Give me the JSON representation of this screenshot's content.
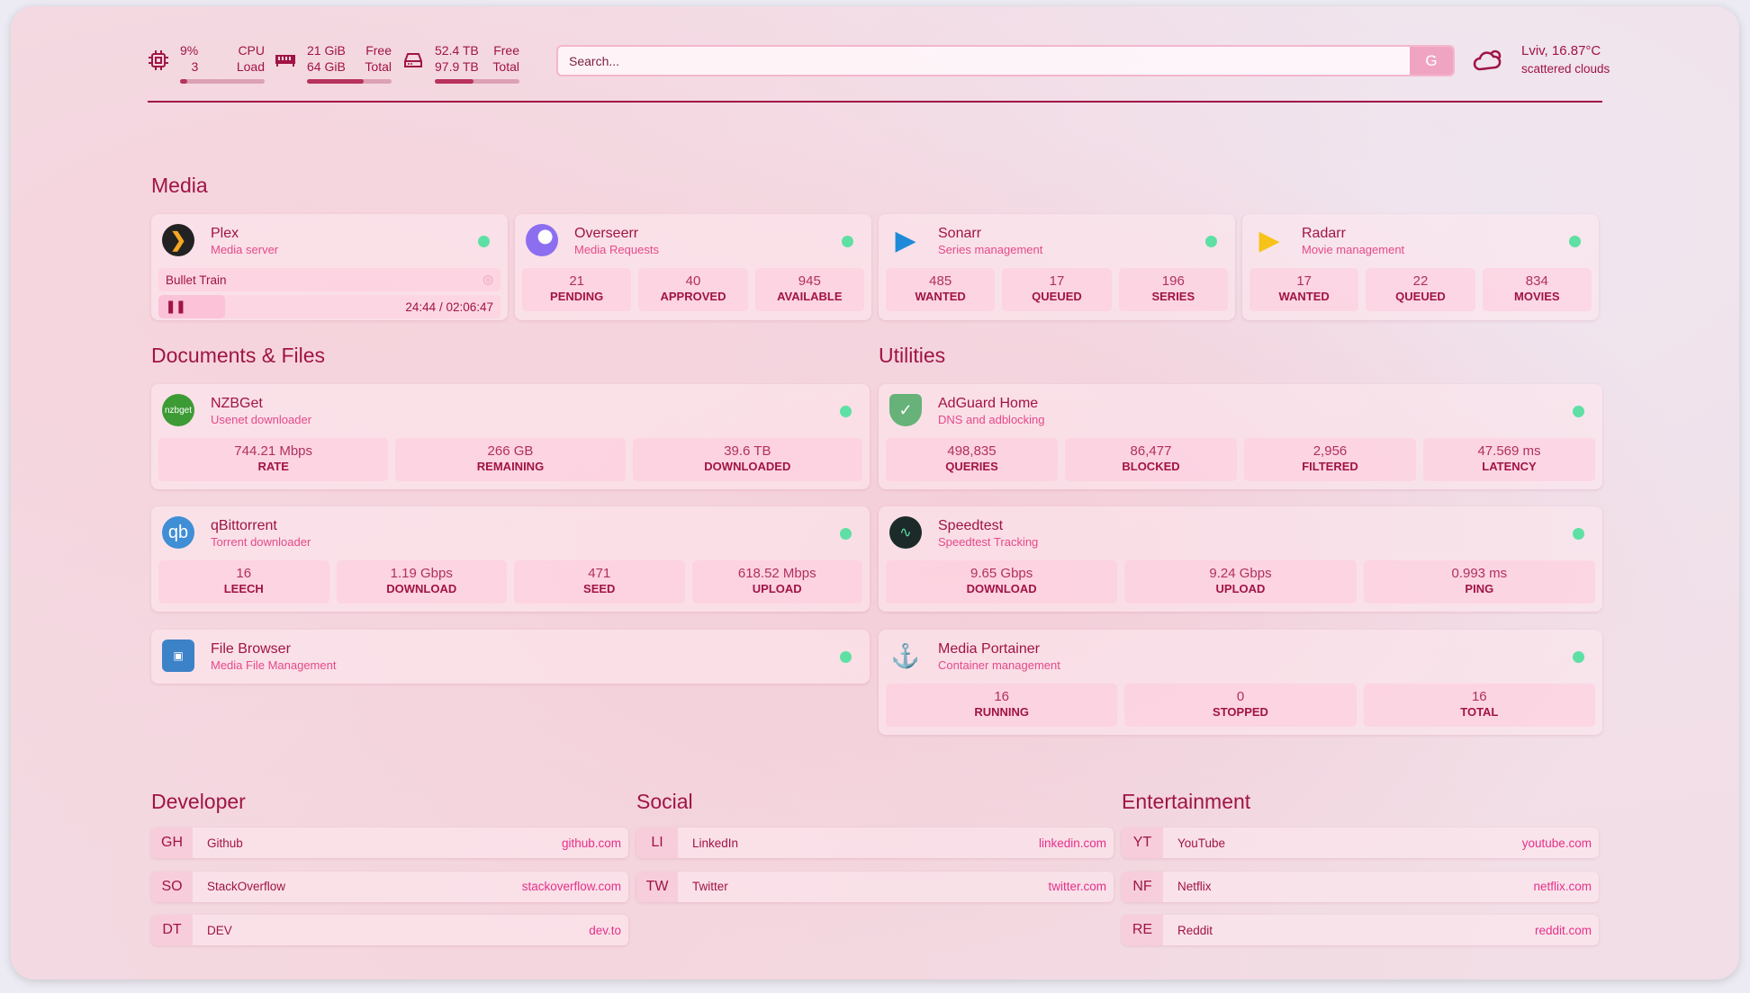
{
  "header": {
    "cpu": {
      "icon": "cpu-icon",
      "value": "9%",
      "sub": "3",
      "label1": "CPU",
      "label2": "Load",
      "fill": 9
    },
    "memory": {
      "icon": "memory-icon",
      "value": "21 GiB",
      "sub": "64 GiB",
      "label1": "Free",
      "label2": "Total",
      "fill": 67
    },
    "disk": {
      "icon": "disk-icon",
      "value": "52.4 TB",
      "sub": "97.9 TB",
      "label1": "Free",
      "label2": "Total",
      "fill": 46
    },
    "search": {
      "placeholder": "Search...",
      "button": "G"
    },
    "weather": {
      "icon": "cloud-sun-icon",
      "location": "Lviv, 16.87°C",
      "condition": "scattered clouds"
    }
  },
  "colors": {
    "accent": "#a01445",
    "pink": "#e5498a",
    "status_online": "#5ee0a4"
  },
  "sections": {
    "media": "Media",
    "documents": "Documents & Files",
    "utilities": "Utilities",
    "developer": "Developer",
    "social": "Social",
    "entertainment": "Entertainment"
  },
  "media": [
    {
      "name": "Plex",
      "sub": "Media server",
      "icon": "plex-icon",
      "now_playing": {
        "title": "Bullet Train",
        "time": "24:44 / 02:06:47",
        "progress": 19.5
      }
    },
    {
      "name": "Overseerr",
      "sub": "Media Requests",
      "icon": "overseerr-icon",
      "stats": [
        {
          "v": "21",
          "l": "PENDING"
        },
        {
          "v": "40",
          "l": "APPROVED"
        },
        {
          "v": "945",
          "l": "AVAILABLE"
        }
      ]
    },
    {
      "name": "Sonarr",
      "sub": "Series management",
      "icon": "sonarr-icon",
      "stats": [
        {
          "v": "485",
          "l": "WANTED"
        },
        {
          "v": "17",
          "l": "QUEUED"
        },
        {
          "v": "196",
          "l": "SERIES"
        }
      ]
    },
    {
      "name": "Radarr",
      "sub": "Movie management",
      "icon": "radarr-icon",
      "stats": [
        {
          "v": "17",
          "l": "WANTED"
        },
        {
          "v": "22",
          "l": "QUEUED"
        },
        {
          "v": "834",
          "l": "MOVIES"
        }
      ]
    }
  ],
  "documents": [
    {
      "name": "NZBGet",
      "sub": "Usenet downloader",
      "icon": "nzbget-icon",
      "icon_text": "nzbget",
      "stats": [
        {
          "v": "744.21 Mbps",
          "l": "RATE"
        },
        {
          "v": "266 GB",
          "l": "REMAINING"
        },
        {
          "v": "39.6 TB",
          "l": "DOWNLOADED"
        }
      ]
    },
    {
      "name": "qBittorrent",
      "sub": "Torrent downloader",
      "icon": "qbittorrent-icon",
      "icon_text": "qb",
      "stats": [
        {
          "v": "16",
          "l": "LEECH"
        },
        {
          "v": "1.19 Gbps",
          "l": "DOWNLOAD"
        },
        {
          "v": "471",
          "l": "SEED"
        },
        {
          "v": "618.52 Mbps",
          "l": "UPLOAD"
        }
      ]
    },
    {
      "name": "File Browser",
      "sub": "Media File Management",
      "icon": "file-browser-icon",
      "stats": []
    }
  ],
  "utilities": [
    {
      "name": "AdGuard Home",
      "sub": "DNS and adblocking",
      "icon": "adguard-icon",
      "stats": [
        {
          "v": "498,835",
          "l": "QUERIES"
        },
        {
          "v": "86,477",
          "l": "BLOCKED"
        },
        {
          "v": "2,956",
          "l": "FILTERED"
        },
        {
          "v": "47.569 ms",
          "l": "LATENCY"
        }
      ]
    },
    {
      "name": "Speedtest",
      "sub": "Speedtest Tracking",
      "icon": "speedtest-icon",
      "stats": [
        {
          "v": "9.65 Gbps",
          "l": "DOWNLOAD"
        },
        {
          "v": "9.24 Gbps",
          "l": "UPLOAD"
        },
        {
          "v": "0.993 ms",
          "l": "PING"
        }
      ]
    },
    {
      "name": "Media Portainer",
      "sub": "Container management",
      "icon": "portainer-icon",
      "stats": [
        {
          "v": "16",
          "l": "RUNNING"
        },
        {
          "v": "0",
          "l": "STOPPED"
        },
        {
          "v": "16",
          "l": "TOTAL"
        }
      ]
    }
  ],
  "bookmarks": {
    "developer": [
      {
        "abbr": "GH",
        "name": "Github",
        "href": "github.com"
      },
      {
        "abbr": "SO",
        "name": "StackOverflow",
        "href": "stackoverflow.com"
      },
      {
        "abbr": "DT",
        "name": "DEV",
        "href": "dev.to"
      }
    ],
    "social": [
      {
        "abbr": "LI",
        "name": "LinkedIn",
        "href": "linkedin.com"
      },
      {
        "abbr": "TW",
        "name": "Twitter",
        "href": "twitter.com"
      }
    ],
    "entertainment": [
      {
        "abbr": "YT",
        "name": "YouTube",
        "href": "youtube.com"
      },
      {
        "abbr": "NF",
        "name": "Netflix",
        "href": "netflix.com"
      },
      {
        "abbr": "RE",
        "name": "Reddit",
        "href": "reddit.com"
      }
    ]
  }
}
